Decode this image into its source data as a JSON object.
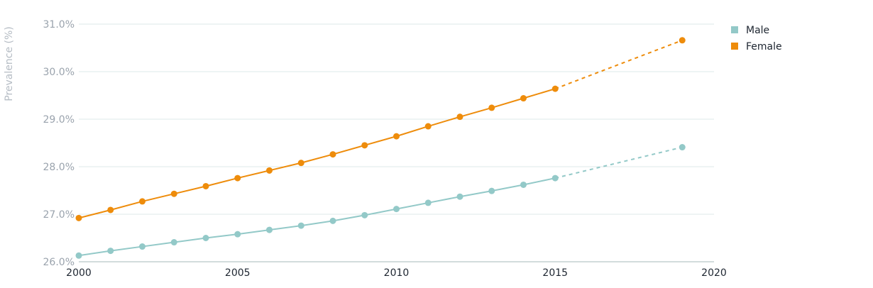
{
  "chart_data": {
    "type": "line",
    "title": "",
    "xlabel": "",
    "ylabel": "Prevalence (%)",
    "xlim": [
      2000,
      2020
    ],
    "ylim": [
      26.0,
      31.0
    ],
    "x_ticks": [
      2000,
      2005,
      2010,
      2015,
      2020
    ],
    "y_ticks": [
      26.0,
      27.0,
      28.0,
      29.0,
      30.0,
      31.0
    ],
    "y_tick_labels": [
      "26.0%",
      "27.0%",
      "28.0%",
      "29.0%",
      "30.0%",
      "31.0%"
    ],
    "grid": "horizontal",
    "legend_position": "top-right",
    "x": [
      2000,
      2001,
      2002,
      2003,
      2004,
      2005,
      2006,
      2007,
      2008,
      2009,
      2010,
      2011,
      2012,
      2013,
      2014,
      2015,
      2019
    ],
    "projection_from": 2015,
    "series": [
      {
        "name": "Male",
        "color": "#93c9c8",
        "values": [
          26.13,
          26.23,
          26.32,
          26.41,
          26.5,
          26.58,
          26.67,
          26.76,
          26.86,
          26.98,
          27.11,
          27.24,
          27.37,
          27.49,
          27.62,
          27.76,
          28.41
        ]
      },
      {
        "name": "Female",
        "color": "#ee8c0b",
        "values": [
          26.92,
          27.09,
          27.27,
          27.43,
          27.59,
          27.76,
          27.92,
          28.08,
          28.26,
          28.45,
          28.64,
          28.85,
          29.05,
          29.24,
          29.44,
          29.64,
          30.66
        ]
      }
    ]
  }
}
